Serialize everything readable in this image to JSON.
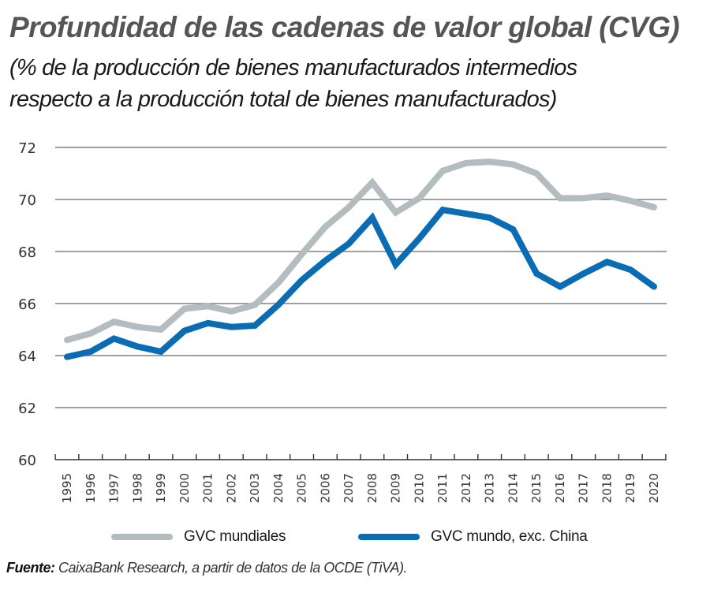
{
  "header": {
    "title": "Profundidad de las cadenas de valor global (CVG)",
    "subtitle_line1": "(% de la producción de bienes manufacturados intermedios",
    "subtitle_line2": "respecto a la producción total de bienes manufacturados)"
  },
  "colors": {
    "series_world": "#b3bcbf",
    "series_ex_china": "#0a6db4",
    "grid": "#808080",
    "axis": "#333333",
    "title": "#555555"
  },
  "chart_data": {
    "type": "line",
    "title": "Profundidad de las cadenas de valor global (CVG)",
    "subtitle": "(% de la producción de bienes manufacturados intermedios respecto a la producción total de bienes manufacturados)",
    "xlabel": "",
    "ylabel": "",
    "ylim": [
      60,
      72
    ],
    "yticks": [
      60,
      62,
      64,
      66,
      68,
      70,
      72
    ],
    "grid": true,
    "legend_position": "bottom",
    "x": [
      "1995",
      "1996",
      "1997",
      "1998",
      "1999",
      "2000",
      "2001",
      "2002",
      "2003",
      "2004",
      "2005",
      "2006",
      "2007",
      "2008",
      "2009",
      "2010",
      "2011",
      "2012",
      "2013",
      "2014",
      "2015",
      "2016",
      "2017",
      "2018",
      "2019",
      "2020"
    ],
    "series": [
      {
        "name": "GVC mundiales",
        "color": "#b3bcbf",
        "values": [
          64.6,
          64.85,
          65.3,
          65.1,
          65.0,
          65.8,
          65.9,
          65.7,
          65.95,
          66.8,
          67.9,
          68.95,
          69.7,
          70.65,
          69.5,
          70.05,
          71.1,
          71.4,
          71.45,
          71.35,
          71.0,
          70.05,
          70.05,
          70.15,
          69.95,
          69.7
        ]
      },
      {
        "name": "GVC mundo, exc. China",
        "color": "#0a6db4",
        "values": [
          63.95,
          64.15,
          64.65,
          64.35,
          64.15,
          64.95,
          65.25,
          65.1,
          65.15,
          65.95,
          66.9,
          67.65,
          68.3,
          69.3,
          67.5,
          68.5,
          69.6,
          69.45,
          69.3,
          68.85,
          67.15,
          66.65,
          67.15,
          67.6,
          67.3,
          66.65
        ]
      }
    ]
  },
  "legend": {
    "items": [
      {
        "label": "GVC mundiales",
        "color": "#b3bcbf"
      },
      {
        "label": "GVC mundo, exc. China",
        "color": "#0a6db4"
      }
    ]
  },
  "source": {
    "label": "Fuente:",
    "text": " CaixaBank Research, a partir de datos de la OCDE (TiVA)."
  }
}
